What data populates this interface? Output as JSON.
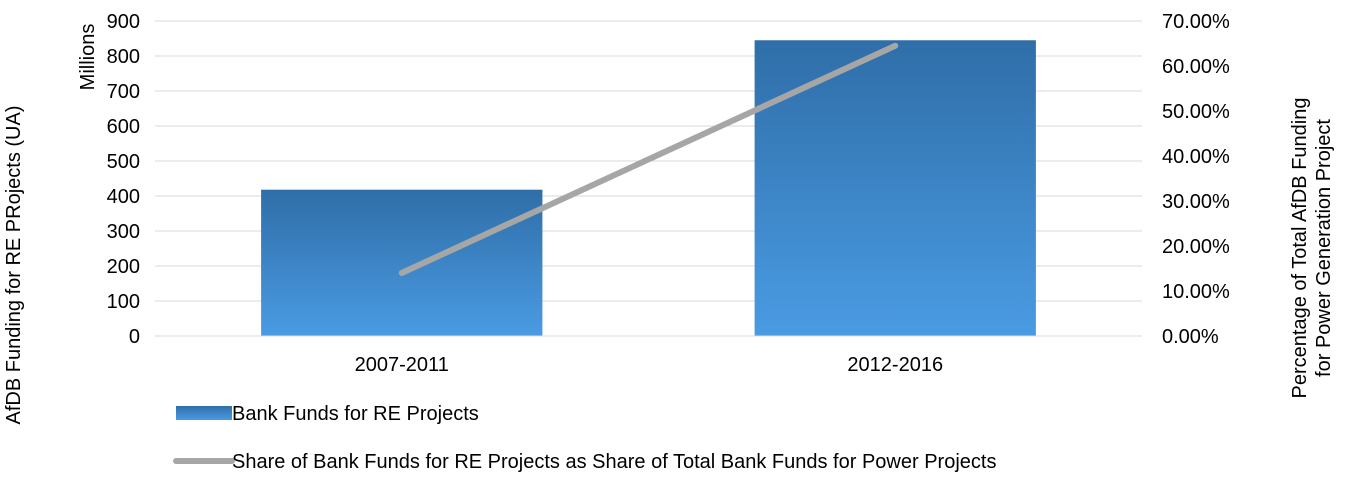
{
  "chart_data": {
    "type": "bar",
    "categories": [
      "2007-2011",
      "2012-2016"
    ],
    "series": [
      {
        "name": "Bank Funds for RE Projects",
        "type": "bar",
        "axis": "left",
        "values": [
          418,
          845
        ],
        "color_top": "#2f6ea8",
        "color_bottom": "#4a9be3"
      },
      {
        "name": "Share of Bank Funds for RE Projects as Share of Total Bank Funds for Power Projects",
        "type": "line",
        "axis": "right",
        "values": [
          0.14,
          0.645
        ],
        "color": "#a6a6a6"
      }
    ],
    "ylabel": "AfDB Funding for RE PRojects (UA)",
    "yunit": "Millions",
    "y2label": [
      "Percentage of Total AfDB Funding",
      "for Power Generation Project"
    ],
    "ylim": [
      0,
      900
    ],
    "y2lim": [
      0,
      0.7
    ],
    "yticks": [
      "0",
      "100",
      "200",
      "300",
      "400",
      "500",
      "600",
      "700",
      "800",
      "900"
    ],
    "y2ticks": [
      "0.00%",
      "10.00%",
      "20.00%",
      "30.00%",
      "40.00%",
      "50.00%",
      "60.00%",
      "70.00%"
    ],
    "grid": true,
    "legend_position": "bottom"
  }
}
